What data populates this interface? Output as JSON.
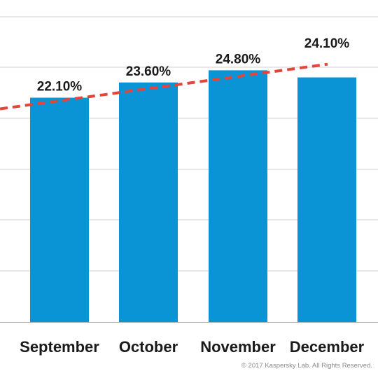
{
  "chart_data": {
    "type": "bar",
    "categories": [
      "September",
      "October",
      "November",
      "December"
    ],
    "values": [
      22.1,
      23.6,
      24.8,
      24.1
    ],
    "value_labels": [
      "22.10%",
      "23.60%",
      "24.80%",
      "24.10%"
    ],
    "ylim": [
      0,
      25
    ],
    "grid": true,
    "trendline": {
      "style": "dashed",
      "color": "#e4453a",
      "from": 21.0,
      "to": 25.4
    },
    "colors": {
      "bar": "#0a93d5",
      "grid": "#d0d0d0",
      "axis": "#aaaaaa",
      "trend": "#e4453a"
    }
  },
  "footer": {
    "copyright": "© 2017 Kaspersky Lab. All Rights Reserved."
  }
}
